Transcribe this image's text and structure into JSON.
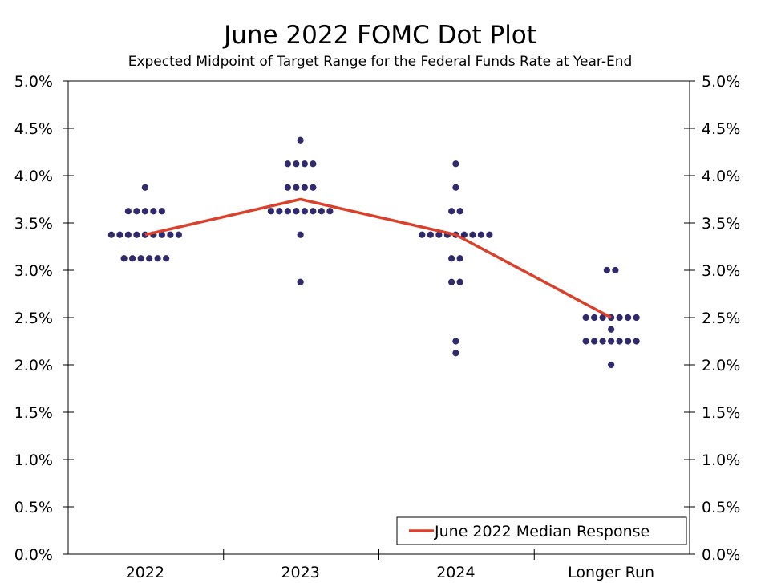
{
  "chart_data": {
    "type": "scatter",
    "title": "June 2022 FOMC Dot Plot",
    "subtitle": "Expected Midpoint of Target Range for the Federal Funds Rate at Year-End",
    "categories": [
      "2022",
      "2023",
      "2024",
      "Longer Run"
    ],
    "ylim": [
      0,
      5.0
    ],
    "y_ticks": [
      "0.0%",
      "0.5%",
      "1.0%",
      "1.5%",
      "2.0%",
      "2.5%",
      "3.0%",
      "3.5%",
      "4.0%",
      "4.5%",
      "5.0%"
    ],
    "y_tick_values": [
      0,
      0.5,
      1.0,
      1.5,
      2.0,
      2.5,
      3.0,
      3.5,
      4.0,
      4.5,
      5.0
    ],
    "grid": false,
    "legend_position": "bottom-right",
    "dot_color": "#2e2a6b",
    "median_color": "#d9412b",
    "dots": [
      {
        "category": "2022",
        "groups": [
          {
            "value": 3.875,
            "count": 1
          },
          {
            "value": 3.625,
            "count": 5
          },
          {
            "value": 3.375,
            "count": 9
          },
          {
            "value": 3.125,
            "count": 6
          }
        ]
      },
      {
        "category": "2023",
        "groups": [
          {
            "value": 4.375,
            "count": 1
          },
          {
            "value": 4.125,
            "count": 4
          },
          {
            "value": 3.875,
            "count": 4
          },
          {
            "value": 3.625,
            "count": 8
          },
          {
            "value": 3.375,
            "count": 1
          },
          {
            "value": 2.875,
            "count": 1
          }
        ]
      },
      {
        "category": "2024",
        "groups": [
          {
            "value": 4.125,
            "count": 1
          },
          {
            "value": 3.875,
            "count": 1
          },
          {
            "value": 3.625,
            "count": 2
          },
          {
            "value": 3.375,
            "count": 9
          },
          {
            "value": 3.125,
            "count": 2
          },
          {
            "value": 2.875,
            "count": 2
          },
          {
            "value": 2.25,
            "count": 1
          },
          {
            "value": 2.125,
            "count": 1
          }
        ]
      },
      {
        "category": "Longer Run",
        "groups": [
          {
            "value": 3.0,
            "count": 2
          },
          {
            "value": 2.5,
            "count": 7
          },
          {
            "value": 2.375,
            "count": 1
          },
          {
            "value": 2.25,
            "count": 7
          },
          {
            "value": 2.0,
            "count": 1
          }
        ]
      }
    ],
    "series": [
      {
        "name": "June 2022 Median Response",
        "values": [
          3.375,
          3.75,
          3.375,
          2.5
        ]
      }
    ]
  }
}
